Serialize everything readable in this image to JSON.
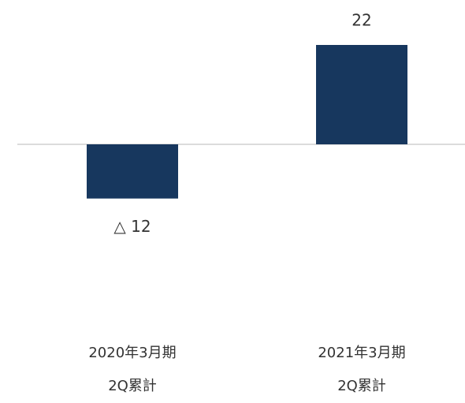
{
  "chart_data": {
    "type": "bar",
    "categories": [
      "2020年3月期\n2Q累計",
      "2021年3月期\n2Q累計"
    ],
    "values": [
      -12,
      22
    ],
    "value_labels": [
      "△ 12",
      "22"
    ],
    "color": "#17375e"
  }
}
